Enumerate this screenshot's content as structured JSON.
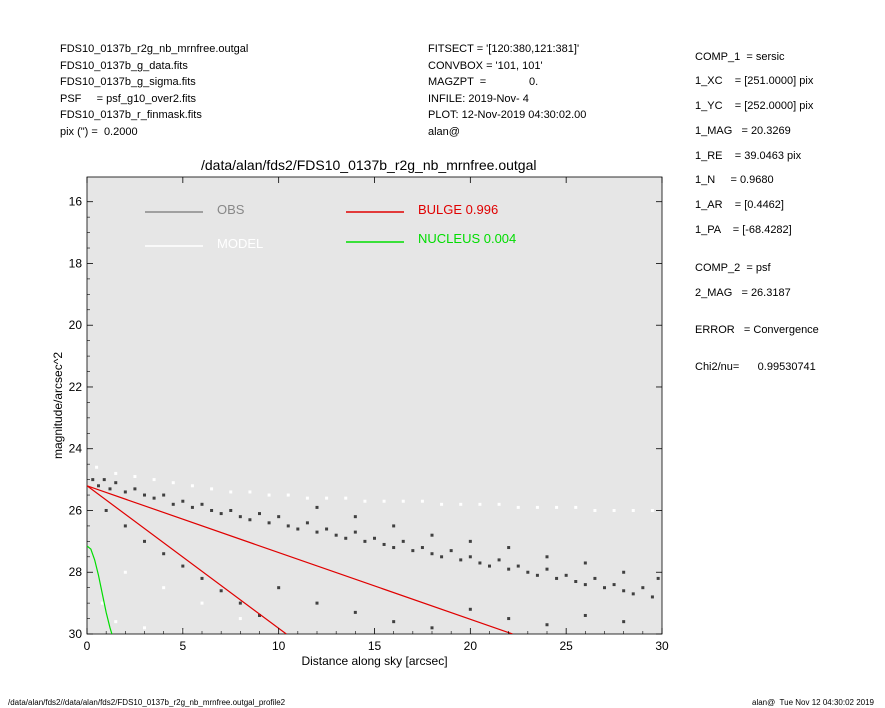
{
  "header_left": [
    "FDS10_0137b_r2g_nb_mrnfree.outgal",
    "FDS10_0137b_g_data.fits",
    "FDS10_0137b_g_sigma.fits",
    "PSF     = psf_g10_over2.fits",
    "FDS10_0137b_r_finmask.fits",
    "pix (\") =  0.2000"
  ],
  "header_mid": [
    "FITSECT = '[120:380,121:381]'",
    "CONVBOX = '101, 101'",
    "MAGZPT  =              0.",
    "INFILE: 2019-Nov- 4",
    "PLOT: 12-Nov-2019 04:30:02.00",
    "alan@"
  ],
  "params": [
    "COMP_1  = sersic",
    "1_XC    = [251.0000] pix",
    "1_YC    = [252.0000] pix",
    "1_MAG   = 20.3269",
    "1_RE    = 39.0463 pix",
    "1_N     = 0.9680",
    "1_AR    = [0.4462]",
    "1_PA    = [-68.4282]",
    "COMP_2  = psf",
    "2_MAG   = 26.3187",
    "ERROR   = Convergence",
    "Chi2/nu=      0.99530741"
  ],
  "footer_left": "/data/alan/fds2//data/alan/fds2/FDS10_0137b_r2g_nb_mrnfree.outgal_profile2",
  "footer_right": "alan@  Tue Nov 12 04:30:02 2019",
  "chart_data": {
    "type": "scatter",
    "title": "/data/alan/fds2/FDS10_0137b_r2g_nb_mrnfree.outgal",
    "xlabel": "Distance along sky [arcsec]",
    "ylabel": "magnitude/arcsec^2",
    "xlim": [
      0,
      30
    ],
    "ylim": [
      30,
      15.2
    ],
    "y_inverted": true,
    "xticks": [
      0,
      5,
      10,
      15,
      20,
      25,
      30
    ],
    "yticks": [
      16,
      18,
      20,
      22,
      24,
      26,
      28,
      30
    ],
    "grid": false,
    "background": "#e6e6e6",
    "legend": [
      {
        "label": "OBS",
        "color": "#888888"
      },
      {
        "label": "MODEL",
        "color": "#ffffff"
      },
      {
        "label": "BULGE  0.996",
        "color": "#e00000"
      },
      {
        "label": "NUCLEUS  0.004",
        "color": "#00dd00"
      }
    ],
    "series": [
      {
        "name": "OBS",
        "color": "#404040",
        "points": [
          [
            0.3,
            25.0
          ],
          [
            0.6,
            25.2
          ],
          [
            0.9,
            25.0
          ],
          [
            1.2,
            25.3
          ],
          [
            1.5,
            25.1
          ],
          [
            2.0,
            25.4
          ],
          [
            2.5,
            25.3
          ],
          [
            3.0,
            25.5
          ],
          [
            3.5,
            25.6
          ],
          [
            4.0,
            25.5
          ],
          [
            4.5,
            25.8
          ],
          [
            5.0,
            25.7
          ],
          [
            5.5,
            25.9
          ],
          [
            6.0,
            25.8
          ],
          [
            6.5,
            26.0
          ],
          [
            7.0,
            26.1
          ],
          [
            7.5,
            26.0
          ],
          [
            8.0,
            26.2
          ],
          [
            8.5,
            26.3
          ],
          [
            9.0,
            26.1
          ],
          [
            9.5,
            26.4
          ],
          [
            10.0,
            26.2
          ],
          [
            10.5,
            26.5
          ],
          [
            11.0,
            26.6
          ],
          [
            11.5,
            26.4
          ],
          [
            12.0,
            26.7
          ],
          [
            12.5,
            26.6
          ],
          [
            13.0,
            26.8
          ],
          [
            13.5,
            26.9
          ],
          [
            14.0,
            26.7
          ],
          [
            14.5,
            27.0
          ],
          [
            15.0,
            26.9
          ],
          [
            15.5,
            27.1
          ],
          [
            16.0,
            27.2
          ],
          [
            16.5,
            27.0
          ],
          [
            17.0,
            27.3
          ],
          [
            17.5,
            27.2
          ],
          [
            18.0,
            27.4
          ],
          [
            18.5,
            27.5
          ],
          [
            19.0,
            27.3
          ],
          [
            19.5,
            27.6
          ],
          [
            20.0,
            27.5
          ],
          [
            20.5,
            27.7
          ],
          [
            21.0,
            27.8
          ],
          [
            21.5,
            27.6
          ],
          [
            22.0,
            27.9
          ],
          [
            22.5,
            27.8
          ],
          [
            23.0,
            28.0
          ],
          [
            23.5,
            28.1
          ],
          [
            24.0,
            27.9
          ],
          [
            24.5,
            28.2
          ],
          [
            25.0,
            28.1
          ],
          [
            25.5,
            28.3
          ],
          [
            26.0,
            28.4
          ],
          [
            26.5,
            28.2
          ],
          [
            27.0,
            28.5
          ],
          [
            27.5,
            28.4
          ],
          [
            28.0,
            28.6
          ],
          [
            28.5,
            28.7
          ],
          [
            29.0,
            28.5
          ],
          [
            29.5,
            28.8
          ],
          [
            1.0,
            26.0
          ],
          [
            2.0,
            26.5
          ],
          [
            3.0,
            27.0
          ],
          [
            4.0,
            27.4
          ],
          [
            5.0,
            27.8
          ],
          [
            6.0,
            28.2
          ],
          [
            7.0,
            28.6
          ],
          [
            8.0,
            29.0
          ],
          [
            9.0,
            29.4
          ],
          [
            12.0,
            25.9
          ],
          [
            14.0,
            26.2
          ],
          [
            16.0,
            26.5
          ],
          [
            18.0,
            26.8
          ],
          [
            20.0,
            27.0
          ],
          [
            22.0,
            27.2
          ],
          [
            24.0,
            27.5
          ],
          [
            26.0,
            27.7
          ],
          [
            28.0,
            28.0
          ],
          [
            29.8,
            28.2
          ],
          [
            10.0,
            28.5
          ],
          [
            12.0,
            29.0
          ],
          [
            14.0,
            29.3
          ],
          [
            16.0,
            29.6
          ],
          [
            18.0,
            29.8
          ],
          [
            20.0,
            29.2
          ],
          [
            22.0,
            29.5
          ],
          [
            24.0,
            29.7
          ],
          [
            26.0,
            29.4
          ],
          [
            28.0,
            29.6
          ]
        ]
      },
      {
        "name": "MODEL",
        "color": "#ffffff",
        "points": [
          [
            0.5,
            24.6
          ],
          [
            1.5,
            24.8
          ],
          [
            2.5,
            24.9
          ],
          [
            3.5,
            25.0
          ],
          [
            4.5,
            25.1
          ],
          [
            5.5,
            25.2
          ],
          [
            6.5,
            25.3
          ],
          [
            7.5,
            25.4
          ],
          [
            8.5,
            25.4
          ],
          [
            9.5,
            25.5
          ],
          [
            10.5,
            25.5
          ],
          [
            11.5,
            25.6
          ],
          [
            12.5,
            25.6
          ],
          [
            13.5,
            25.6
          ],
          [
            14.5,
            25.7
          ],
          [
            15.5,
            25.7
          ],
          [
            16.5,
            25.7
          ],
          [
            17.5,
            25.7
          ],
          [
            18.5,
            25.8
          ],
          [
            19.5,
            25.8
          ],
          [
            20.5,
            25.8
          ],
          [
            21.5,
            25.8
          ],
          [
            22.5,
            25.9
          ],
          [
            23.5,
            25.9
          ],
          [
            24.5,
            25.9
          ],
          [
            25.5,
            25.9
          ],
          [
            26.5,
            26.0
          ],
          [
            27.5,
            26.0
          ],
          [
            28.5,
            26.0
          ],
          [
            29.5,
            26.0
          ],
          [
            2.0,
            28.0
          ],
          [
            4.0,
            28.5
          ],
          [
            6.0,
            29.0
          ],
          [
            8.0,
            29.5
          ],
          [
            0.8,
            29.0
          ],
          [
            1.5,
            29.6
          ],
          [
            3.0,
            29.8
          ],
          [
            5.0,
            29.9
          ]
        ]
      }
    ],
    "bulge_lines": {
      "color": "#e00000",
      "start": [
        0.0,
        25.2
      ],
      "ends": [
        [
          10.4,
          30.0
        ],
        [
          22.2,
          30.0
        ]
      ]
    },
    "nucleus_curve": {
      "color": "#00dd00",
      "points": [
        [
          0.0,
          27.15
        ],
        [
          0.2,
          27.25
        ],
        [
          0.4,
          27.6
        ],
        [
          0.6,
          28.1
        ],
        [
          0.8,
          28.7
        ],
        [
          1.0,
          29.3
        ],
        [
          1.2,
          29.8
        ],
        [
          1.3,
          30.0
        ]
      ]
    }
  }
}
